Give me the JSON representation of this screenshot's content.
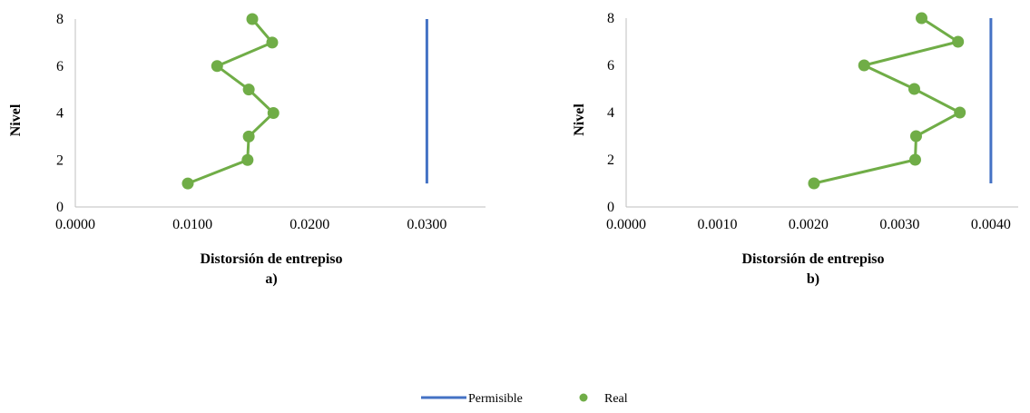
{
  "colors": {
    "permisible": "#4472C4",
    "real": "#70AD47",
    "axis": "#BFBFBF",
    "text": "#000000"
  },
  "legend": {
    "permisible_label": "Permisible",
    "real_label": "Real"
  },
  "chart_data": [
    {
      "type": "line",
      "title": "",
      "panel_label": "a)",
      "xlabel": "Distorsión de entrepiso",
      "ylabel": "Nivel",
      "xlim": [
        0,
        0.035
      ],
      "ylim": [
        0,
        8
      ],
      "x_ticks": [
        "0.0000",
        "0.0100",
        "0.0200",
        "0.0300"
      ],
      "x_tick_values": [
        0,
        0.01,
        0.02,
        0.03
      ],
      "y_ticks": [
        "0",
        "2",
        "4",
        "6",
        "8"
      ],
      "y_tick_values": [
        0,
        2,
        4,
        6,
        8
      ],
      "grid": false,
      "series": [
        {
          "name": "Real",
          "kind": "line+markers",
          "x": [
            0.0096,
            0.0147,
            0.0148,
            0.0169,
            0.0148,
            0.0121,
            0.0168,
            0.0151
          ],
          "y": [
            1,
            2,
            3,
            4,
            5,
            6,
            7,
            8
          ]
        },
        {
          "name": "Permisible",
          "kind": "line",
          "x": [
            0.03,
            0.03
          ],
          "y": [
            1,
            8
          ]
        }
      ]
    },
    {
      "type": "line",
      "title": "",
      "panel_label": "b)",
      "xlabel": "Distorsión de entrepiso",
      "ylabel": "Nivel",
      "xlim": [
        0,
        0.0043
      ],
      "ylim": [
        0,
        8
      ],
      "x_ticks": [
        "0.0000",
        "0.0010",
        "0.0020",
        "0.0030",
        "0.0040"
      ],
      "x_tick_values": [
        0,
        0.001,
        0.002,
        0.003,
        0.004
      ],
      "y_ticks": [
        "0",
        "2",
        "4",
        "6",
        "8"
      ],
      "y_tick_values": [
        0,
        2,
        4,
        6,
        8
      ],
      "grid": false,
      "series": [
        {
          "name": "Real",
          "kind": "line+markers",
          "x": [
            0.00206,
            0.00317,
            0.00318,
            0.00366,
            0.00316,
            0.00261,
            0.00364,
            0.00324
          ],
          "y": [
            1,
            2,
            3,
            4,
            5,
            6,
            7,
            8
          ]
        },
        {
          "name": "Permisible",
          "kind": "line",
          "x": [
            0.004,
            0.004
          ],
          "y": [
            1,
            8
          ]
        }
      ]
    }
  ]
}
